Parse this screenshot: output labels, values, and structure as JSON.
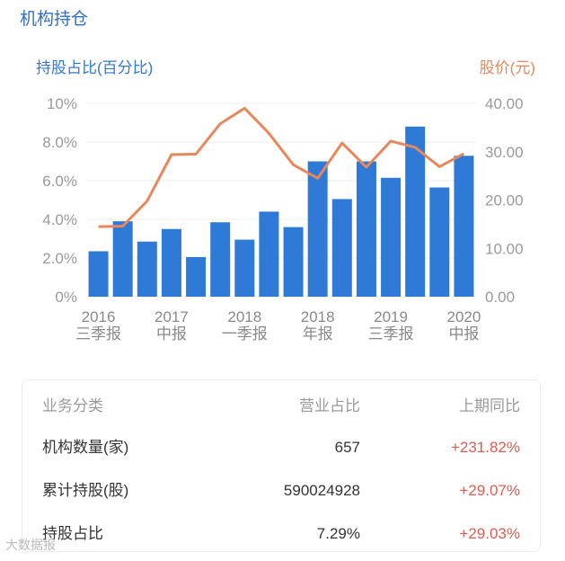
{
  "section_title": "机构持仓",
  "watermark": "大数据报",
  "colors": {
    "bar": "#2f7ad6",
    "line": "#e8875a",
    "positive": "#e35b4f",
    "grid": "#ececec"
  },
  "chart_data": {
    "type": "bar+line",
    "ylabel_left": "持股占比(百分比)",
    "ylabel_right": "股价(元)",
    "ylim_left": [
      0,
      10
    ],
    "ylim_right": [
      0,
      40
    ],
    "yticks_left": [
      "10%",
      "8.0%",
      "6.0%",
      "4.0%",
      "2.0%",
      "0%"
    ],
    "yticks_right": [
      "40.00",
      "30.00",
      "20.00",
      "10.00",
      "0.00"
    ],
    "xtick_labels": [
      {
        "year": "2016",
        "period": "三季报",
        "index": 0
      },
      {
        "year": "2017",
        "period": "中报",
        "index": 3
      },
      {
        "year": "2018",
        "period": "一季报",
        "index": 6
      },
      {
        "year": "2018",
        "period": "年报",
        "index": 9
      },
      {
        "year": "2019",
        "period": "三季报",
        "index": 12
      },
      {
        "year": "2020",
        "period": "中报",
        "index": 15
      }
    ],
    "grid": true,
    "series": [
      {
        "name": "持股占比",
        "kind": "bar",
        "values": [
          2.35,
          3.9,
          2.85,
          3.5,
          2.05,
          3.85,
          2.95,
          4.4,
          3.6,
          7.0,
          5.05,
          7.0,
          6.15,
          8.8,
          5.65,
          7.29
        ]
      },
      {
        "name": "股价",
        "kind": "line",
        "values": [
          14.5,
          14.6,
          19.8,
          29.4,
          29.5,
          35.8,
          39.0,
          33.8,
          27.3,
          24.5,
          31.8,
          26.8,
          32.2,
          30.9,
          26.9,
          29.6
        ]
      }
    ]
  },
  "table": {
    "headers": [
      "业务分类",
      "营业占比",
      "上期同比"
    ],
    "rows": [
      {
        "label": "机构数量(家)",
        "value": "657",
        "change": "+231.82%"
      },
      {
        "label": "累计持股(股)",
        "value": "590024928",
        "change": "+29.07%"
      },
      {
        "label": "持股占比",
        "value": "7.29%",
        "change": "+29.03%"
      }
    ]
  }
}
